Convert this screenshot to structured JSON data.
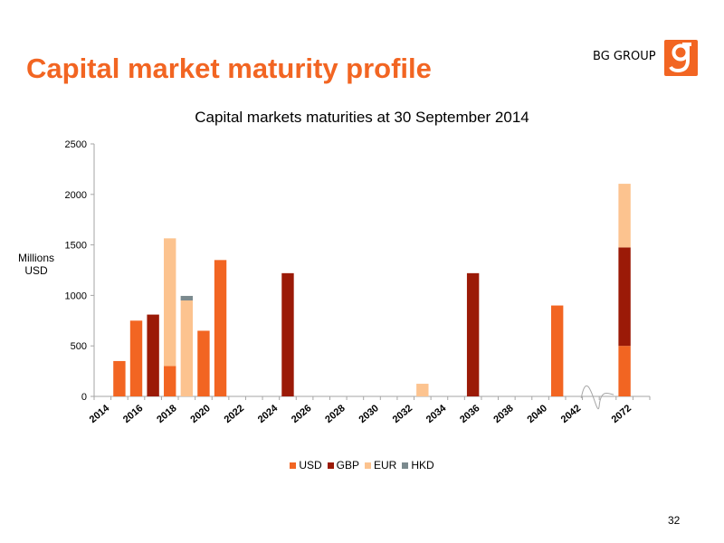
{
  "slide": {
    "title": "Capital market maturity profile",
    "brand": "BG GROUP",
    "page_number": "32"
  },
  "colors": {
    "title": "#f26522",
    "logo": "#f26522"
  },
  "chart_data": {
    "type": "bar",
    "stacked": true,
    "title": "Capital markets maturities at 30 September 2014",
    "xlabel": "",
    "ylabel": "Millions USD",
    "ylim": [
      0,
      2500
    ],
    "yticks": [
      0,
      500,
      1000,
      1500,
      2000,
      2500
    ],
    "grid": false,
    "legend_position": "bottom",
    "axis_break_between": [
      "2043",
      "2071"
    ],
    "categories": [
      "2014",
      "2015",
      "2016",
      "2017",
      "2018",
      "2019",
      "2020",
      "2021",
      "2022",
      "2023",
      "2024",
      "2025",
      "2026",
      "2027",
      "2028",
      "2029",
      "2030",
      "2031",
      "2032",
      "2033",
      "2034",
      "2035",
      "2036",
      "2037",
      "2038",
      "2039",
      "2040",
      "2041",
      "2042",
      "2043",
      "2071",
      "2072",
      "2073"
    ],
    "tick_labels": [
      "2014",
      "2016",
      "2018",
      "2020",
      "2022",
      "2024",
      "2026",
      "2028",
      "2030",
      "2032",
      "2034",
      "2036",
      "2038",
      "2040",
      "2042",
      "2072"
    ],
    "tick_label_categories": [
      "2014",
      "2016",
      "2018",
      "2020",
      "2022",
      "2024",
      "2026",
      "2028",
      "2030",
      "2032",
      "2034",
      "2036",
      "2038",
      "2040",
      "2042",
      "2072"
    ],
    "series": [
      {
        "name": "USD",
        "color": "#f26522",
        "values": [
          0,
          350,
          750,
          0,
          300,
          0,
          650,
          1350,
          0,
          0,
          0,
          0,
          0,
          0,
          0,
          0,
          0,
          0,
          0,
          0,
          0,
          0,
          0,
          0,
          0,
          0,
          0,
          900,
          0,
          0,
          0,
          500,
          0
        ]
      },
      {
        "name": "GBP",
        "color": "#9b1a07",
        "values": [
          0,
          0,
          0,
          810,
          0,
          0,
          0,
          0,
          0,
          0,
          0,
          1220,
          0,
          0,
          0,
          0,
          0,
          0,
          0,
          0,
          0,
          0,
          1220,
          0,
          0,
          0,
          0,
          0,
          0,
          0,
          0,
          975,
          0
        ]
      },
      {
        "name": "EUR",
        "color": "#fcc38f",
        "values": [
          0,
          0,
          0,
          0,
          1265,
          950,
          0,
          0,
          0,
          0,
          0,
          0,
          0,
          0,
          0,
          0,
          0,
          0,
          0,
          125,
          0,
          0,
          0,
          0,
          0,
          0,
          0,
          0,
          0,
          0,
          0,
          630,
          0
        ]
      },
      {
        "name": "HKD",
        "color": "#7b8a8e",
        "values": [
          0,
          0,
          0,
          0,
          0,
          45,
          0,
          0,
          0,
          0,
          0,
          0,
          0,
          0,
          0,
          0,
          0,
          0,
          0,
          0,
          0,
          0,
          0,
          0,
          0,
          0,
          0,
          0,
          0,
          0,
          0,
          0,
          0
        ]
      }
    ]
  }
}
